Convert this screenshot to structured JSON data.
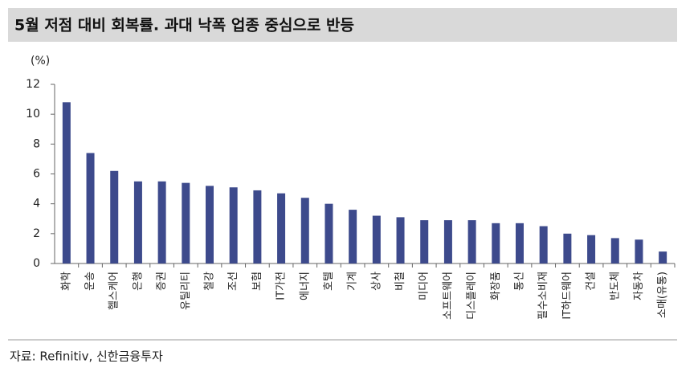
{
  "chart_data": {
    "type": "bar",
    "title": "5월 저점 대비 회복률. 과대 낙폭 업종 중심으로 반등",
    "y_label": "(%)",
    "source": "자료: Refinitiv, 신한금융투자",
    "categories": [
      "화학",
      "운송",
      "헬스케어",
      "은행",
      "증권",
      "유틸리티",
      "철강",
      "조선",
      "보험",
      "IT가전",
      "에너지",
      "호텔",
      "기계",
      "상사",
      "비철",
      "미디어",
      "소프트웨어",
      "디스플레이",
      "화장품",
      "통신",
      "필수소비재",
      "IT하드웨어",
      "건설",
      "반도체",
      "자동차",
      "소매(유통)"
    ],
    "values": [
      10.8,
      7.4,
      6.2,
      5.5,
      5.5,
      5.4,
      5.2,
      5.1,
      4.9,
      4.7,
      4.4,
      4.0,
      3.6,
      3.2,
      3.1,
      2.9,
      2.9,
      2.9,
      2.7,
      2.7,
      2.5,
      2.0,
      1.9,
      1.7,
      1.6,
      0.8
    ],
    "color": "#3d4a8c",
    "ylim": [
      0,
      12
    ],
    "yticks": [
      0,
      2,
      4,
      6,
      8,
      10,
      12
    ],
    "grid": false
  }
}
